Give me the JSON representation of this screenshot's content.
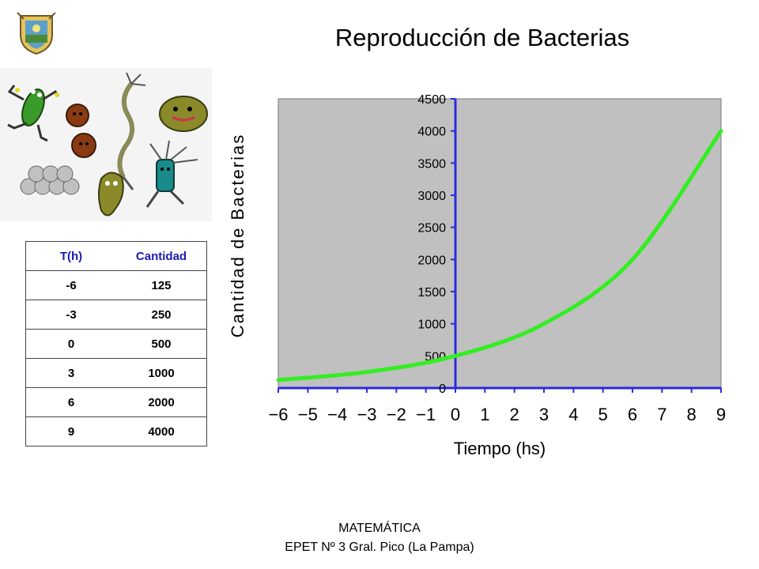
{
  "colors": {
    "plot_background": "#c0c0c0",
    "axis": "#2a2ae0",
    "series_line": "#33ee22",
    "table_header": "#1a1ab5"
  },
  "table": {
    "headers": [
      "T(h)",
      "Cantidad"
    ],
    "rows": [
      [
        "-6",
        "125"
      ],
      [
        "-3",
        "250"
      ],
      [
        "0",
        "500"
      ],
      [
        "3",
        "1000"
      ],
      [
        "6",
        "2000"
      ],
      [
        "9",
        "4000"
      ]
    ]
  },
  "chart_data": {
    "type": "line",
    "title": "Reproducción de Bacterias",
    "xlabel": "Tiempo (hs)",
    "ylabel": "Cantidad de Bacterias",
    "xlim": [
      -6,
      9
    ],
    "ylim": [
      0,
      4500
    ],
    "x_ticks": [
      -6,
      -5,
      -4,
      -3,
      -2,
      -1,
      0,
      1,
      2,
      3,
      4,
      5,
      6,
      7,
      8,
      9
    ],
    "y_ticks": [
      0,
      500,
      1000,
      1500,
      2000,
      2500,
      3000,
      3500,
      4000,
      4500
    ],
    "grid": false,
    "series": [
      {
        "x": [
          -6,
          -3,
          0,
          3,
          6,
          9
        ],
        "values": [
          125,
          250,
          500,
          1000,
          2000,
          4000
        ]
      }
    ]
  },
  "footer": {
    "line1": "MATEMÁTICA",
    "line2": "EPET Nº 3 Gral. Pico (La Pampa)"
  }
}
